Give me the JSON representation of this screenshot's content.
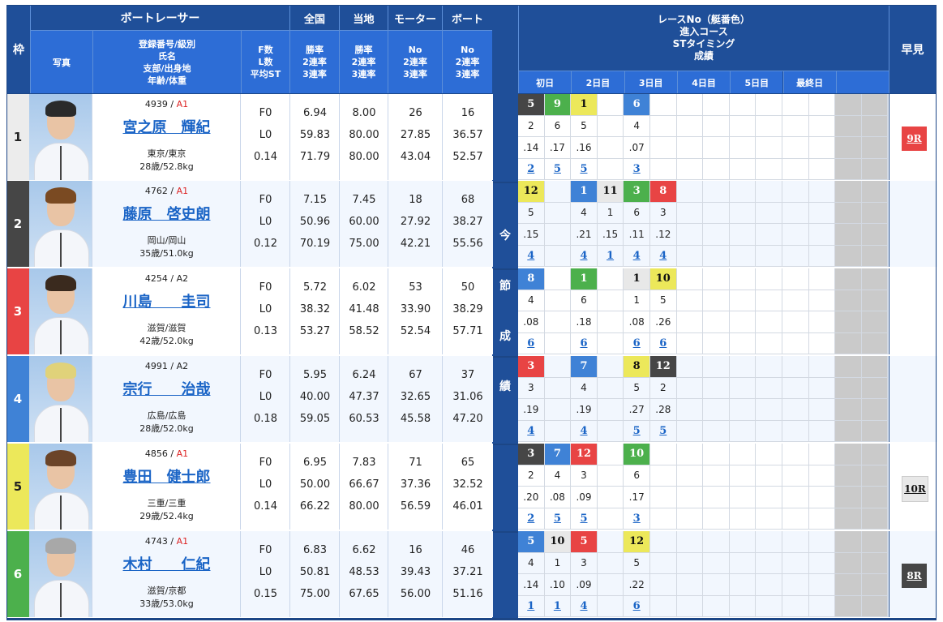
{
  "header": {
    "waku": "枠",
    "boat_racer": "ボートレーサー",
    "photo": "写真",
    "info_lines": [
      "登録番号/級別",
      "氏名",
      "支部/出身地",
      "年齢/体重"
    ],
    "fl_lines": [
      "F数",
      "L数",
      "平均ST"
    ],
    "national": {
      "title": "全国",
      "lines": [
        "勝率",
        "2連率",
        "3連率"
      ]
    },
    "local": {
      "title": "当地",
      "lines": [
        "勝率",
        "2連率",
        "3連率"
      ]
    },
    "motor": {
      "title": "モーター",
      "lines": [
        "No",
        "2連率",
        "3連率"
      ]
    },
    "boat": {
      "title": "ボート",
      "lines": [
        "No",
        "2連率",
        "3連率"
      ]
    },
    "series_lines": [
      "レースNo（艇番色）",
      "進入コース",
      "STタイミング",
      "成績"
    ],
    "days": [
      "初日",
      "2日目",
      "3日目",
      "4日目",
      "5日目",
      "最終日",
      ""
    ],
    "hayami": "早見",
    "konsetsu": [
      "今",
      "節",
      "成",
      "績"
    ]
  },
  "colors": {
    "boat1": "#ffffff",
    "boat2": "#464646",
    "boat3": "#e84444",
    "boat4": "#3f82d6",
    "boat5": "#ece85a",
    "boat6": "#4cb04c",
    "header_dark": "#1f4f99",
    "header_mid": "#2d6dd6",
    "link": "#1a64c6"
  },
  "racers": [
    {
      "waku": "1",
      "reg_no": "4939",
      "class": "A1",
      "name": "宮之原　輝紀",
      "branch": "東京/東京",
      "age_weight": "28歳/52.8kg",
      "f": "F0",
      "l": "L0",
      "avg_st": "0.14",
      "national": [
        "6.94",
        "59.83",
        "71.79"
      ],
      "local": [
        "8.00",
        "80.00",
        "80.00"
      ],
      "motor": [
        "26",
        "27.85",
        "43.04"
      ],
      "boat": [
        "16",
        "36.57",
        "52.57"
      ],
      "races": [
        {
          "slot": 0,
          "race": "5",
          "boat": 2,
          "course": "2",
          "st": ".14",
          "result": "2"
        },
        {
          "slot": 1,
          "race": "9",
          "boat": 6,
          "course": "6",
          "st": ".17",
          "result": "5"
        },
        {
          "slot": 2,
          "race": "1",
          "boat": 5,
          "course": "5",
          "st": ".16",
          "result": "5"
        },
        {
          "slot": 4,
          "race": "6",
          "boat": 4,
          "course": "4",
          "st": ".07",
          "result": "3"
        }
      ],
      "hayami": {
        "label": "9R",
        "boat": 3
      }
    },
    {
      "waku": "2",
      "reg_no": "4762",
      "class": "A1",
      "name": "藤原　啓史朗",
      "branch": "岡山/岡山",
      "age_weight": "35歳/51.0kg",
      "f": "F0",
      "l": "L0",
      "avg_st": "0.12",
      "national": [
        "7.15",
        "50.96",
        "70.19"
      ],
      "local": [
        "7.45",
        "60.00",
        "75.00"
      ],
      "motor": [
        "18",
        "27.92",
        "42.21"
      ],
      "boat": [
        "68",
        "38.27",
        "55.56"
      ],
      "races": [
        {
          "slot": 0,
          "race": "12",
          "boat": 5,
          "course": "5",
          "st": ".15",
          "result": "4"
        },
        {
          "slot": 2,
          "race": "1",
          "boat": 4,
          "course": "4",
          "st": ".21",
          "result": "4"
        },
        {
          "slot": 3,
          "race": "11",
          "boat": 1,
          "course": "1",
          "st": ".15",
          "result": "1"
        },
        {
          "slot": 4,
          "race": "3",
          "boat": 6,
          "course": "6",
          "st": ".11",
          "result": "4"
        },
        {
          "slot": 5,
          "race": "8",
          "boat": 3,
          "course": "3",
          "st": ".12",
          "result": "4"
        }
      ],
      "hayami": null
    },
    {
      "waku": "3",
      "reg_no": "4254",
      "class": "A2",
      "name": "川島　　圭司",
      "branch": "滋賀/滋賀",
      "age_weight": "42歳/52.0kg",
      "f": "F0",
      "l": "L0",
      "avg_st": "0.13",
      "national": [
        "5.72",
        "38.32",
        "53.27"
      ],
      "local": [
        "6.02",
        "41.48",
        "58.52"
      ],
      "motor": [
        "53",
        "33.90",
        "52.54"
      ],
      "boat": [
        "50",
        "38.29",
        "57.71"
      ],
      "races": [
        {
          "slot": 0,
          "race": "8",
          "boat": 4,
          "course": "4",
          "st": ".08",
          "result": "6"
        },
        {
          "slot": 2,
          "race": "1",
          "boat": 6,
          "course": "6",
          "st": ".18",
          "result": "6"
        },
        {
          "slot": 4,
          "race": "1",
          "boat": 1,
          "course": "1",
          "st": ".08",
          "result": "6"
        },
        {
          "slot": 5,
          "race": "10",
          "boat": 5,
          "course": "5",
          "st": ".26",
          "result": "6"
        }
      ],
      "hayami": null
    },
    {
      "waku": "4",
      "reg_no": "4991",
      "class": "A2",
      "name": "宗行　　治哉",
      "branch": "広島/広島",
      "age_weight": "28歳/52.0kg",
      "f": "F0",
      "l": "L0",
      "avg_st": "0.18",
      "national": [
        "5.95",
        "40.00",
        "59.05"
      ],
      "local": [
        "6.24",
        "47.37",
        "60.53"
      ],
      "motor": [
        "67",
        "32.65",
        "45.58"
      ],
      "boat": [
        "37",
        "31.06",
        "47.20"
      ],
      "races": [
        {
          "slot": 0,
          "race": "3",
          "boat": 3,
          "course": "3",
          "st": ".19",
          "result": "4"
        },
        {
          "slot": 2,
          "race": "7",
          "boat": 4,
          "course": "4",
          "st": ".19",
          "result": "4"
        },
        {
          "slot": 4,
          "race": "8",
          "boat": 5,
          "course": "5",
          "st": ".27",
          "result": "5"
        },
        {
          "slot": 5,
          "race": "12",
          "boat": 2,
          "course": "2",
          "st": ".28",
          "result": "5"
        }
      ],
      "hayami": null
    },
    {
      "waku": "5",
      "reg_no": "4856",
      "class": "A1",
      "name": "豊田　健士郎",
      "branch": "三重/三重",
      "age_weight": "29歳/52.4kg",
      "f": "F0",
      "l": "L0",
      "avg_st": "0.14",
      "national": [
        "6.95",
        "50.00",
        "66.22"
      ],
      "local": [
        "7.83",
        "66.67",
        "80.00"
      ],
      "motor": [
        "71",
        "37.36",
        "56.59"
      ],
      "boat": [
        "65",
        "32.52",
        "46.01"
      ],
      "races": [
        {
          "slot": 0,
          "race": "3",
          "boat": 2,
          "course": "2",
          "st": ".20",
          "result": "2"
        },
        {
          "slot": 1,
          "race": "7",
          "boat": 4,
          "course": "4",
          "st": ".08",
          "result": "5"
        },
        {
          "slot": 2,
          "race": "12",
          "boat": 3,
          "course": "3",
          "st": ".09",
          "result": "5"
        },
        {
          "slot": 4,
          "race": "10",
          "boat": 6,
          "course": "6",
          "st": ".17",
          "result": "3"
        }
      ],
      "hayami": {
        "label": "10R",
        "boat": 1
      }
    },
    {
      "waku": "6",
      "reg_no": "4743",
      "class": "A1",
      "name": "木村　　仁紀",
      "branch": "滋賀/京都",
      "age_weight": "33歳/53.0kg",
      "f": "F0",
      "l": "L0",
      "avg_st": "0.15",
      "national": [
        "6.83",
        "50.81",
        "75.00"
      ],
      "local": [
        "6.62",
        "48.53",
        "67.65"
      ],
      "motor": [
        "16",
        "39.43",
        "56.00"
      ],
      "boat": [
        "46",
        "37.21",
        "51.16"
      ],
      "races": [
        {
          "slot": 0,
          "race": "5",
          "boat": 4,
          "course": "4",
          "st": ".14",
          "result": "1"
        },
        {
          "slot": 1,
          "race": "10",
          "boat": 1,
          "course": "1",
          "st": ".10",
          "result": "1"
        },
        {
          "slot": 2,
          "race": "5",
          "boat": 3,
          "course": "3",
          "st": ".09",
          "result": "4"
        },
        {
          "slot": 4,
          "race": "12",
          "boat": 5,
          "course": "5",
          "st": ".22",
          "result": "6"
        }
      ],
      "hayami": {
        "label": "8R",
        "boat": 2
      }
    }
  ]
}
